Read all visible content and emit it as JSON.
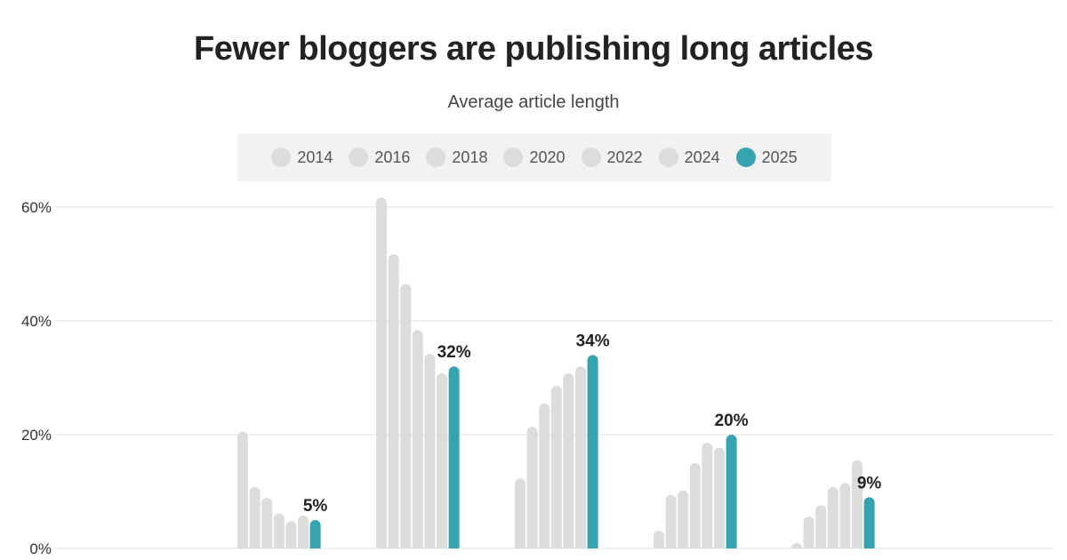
{
  "chart_data": {
    "type": "bar",
    "title": "Fewer bloggers are publishing long articles",
    "subtitle": "Average article length",
    "series_names": [
      "2014",
      "2016",
      "2018",
      "2020",
      "2022",
      "2024",
      "2025"
    ],
    "colors": {
      "highlight": "#35a4b0",
      "muted": "#dcdcdc",
      "grid": "#e6e6e6"
    },
    "groups": [
      [
        20.5,
        10.8,
        8.9,
        6.2,
        4.8,
        5.8,
        5
      ],
      [
        61.7,
        51.7,
        46.5,
        38.4,
        34.2,
        30.8,
        32
      ],
      [
        12.3,
        21.4,
        25.5,
        28.6,
        30.8,
        32,
        34
      ],
      [
        3.1,
        9.4,
        10.2,
        15,
        18.6,
        17.7,
        20
      ],
      [
        1,
        5.6,
        7.6,
        10.8,
        11.5,
        15.5,
        9
      ]
    ],
    "data_labels": [
      "5%",
      "32%",
      "34%",
      "20%",
      "9%"
    ],
    "yticks": [
      0,
      20,
      40,
      60
    ],
    "ytick_labels": [
      "0%",
      "20%",
      "40%",
      "60%"
    ],
    "ylim": [
      0,
      60
    ],
    "grid": true,
    "legend_position": "top-center",
    "highlighted_series": "2025"
  }
}
